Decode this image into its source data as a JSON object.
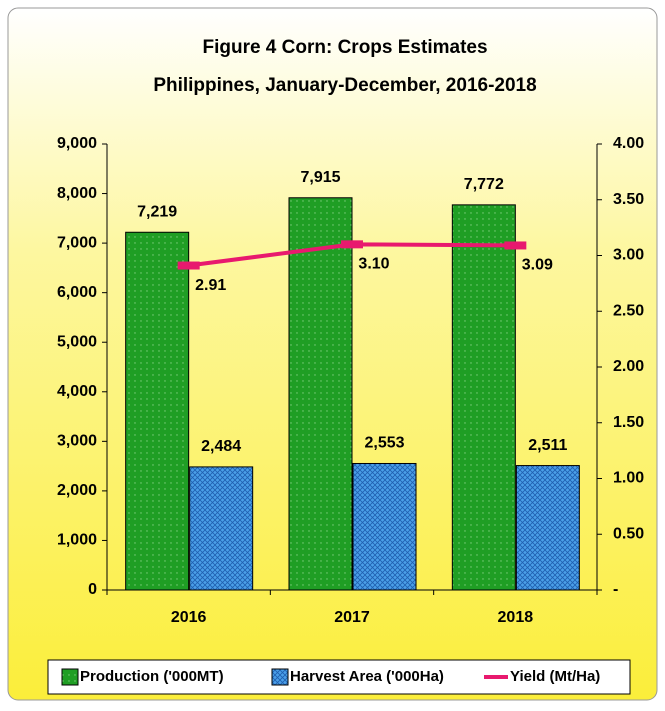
{
  "chart_data": {
    "type": "bar",
    "title": "Figure 4 Corn: Crops Estimates",
    "subtitle": "Philippines, January-December, 2016-2018",
    "categories": [
      "2016",
      "2017",
      "2018"
    ],
    "series": [
      {
        "name": "Production ('000MT)",
        "type": "bar",
        "color": "#1f9e24",
        "values": [
          7219,
          7915,
          7772
        ],
        "value_labels": [
          "7,219",
          "7,915",
          "7,772"
        ]
      },
      {
        "name": "Harvest Area ('000Ha)",
        "type": "bar",
        "color": "#4a9fe8",
        "values": [
          2484,
          2553,
          2511
        ],
        "value_labels": [
          "2,484",
          "2,553",
          "2,511"
        ]
      },
      {
        "name": "Yield (Mt/Ha)",
        "type": "line",
        "axis": "y2",
        "color": "#e8196e",
        "values": [
          2.91,
          3.1,
          3.09
        ],
        "value_labels": [
          "2.91",
          "3.10",
          "3.09"
        ]
      }
    ],
    "ylim": [
      0,
      9000
    ],
    "yticks": [
      0,
      {
        "value": 1000,
        "label": "1,000"
      },
      {
        "value": 2000,
        "label": "2,000"
      },
      {
        "value": 3000,
        "label": "3,000"
      },
      {
        "value": 4000,
        "label": "4,000"
      },
      {
        "value": 5000,
        "label": "5,000"
      },
      {
        "value": 6000,
        "label": "6,000"
      },
      {
        "value": 7000,
        "label": "7,000"
      },
      {
        "value": 8000,
        "label": "8,000"
      },
      {
        "value": 9000,
        "label": "9,000"
      }
    ],
    "y2lim": [
      0,
      4
    ],
    "y2ticks": [
      {
        "value": 0,
        "label": "-"
      },
      {
        "value": 0.5,
        "label": "0.50"
      },
      {
        "value": 1,
        "label": "1.00"
      },
      {
        "value": 1.5,
        "label": "1.50"
      },
      {
        "value": 2,
        "label": "2.00"
      },
      {
        "value": 2.5,
        "label": "2.50"
      },
      {
        "value": 3,
        "label": "3.00"
      },
      {
        "value": 3.5,
        "label": "3.50"
      },
      {
        "value": 4,
        "label": "4.00"
      }
    ],
    "legend": "bottom"
  }
}
